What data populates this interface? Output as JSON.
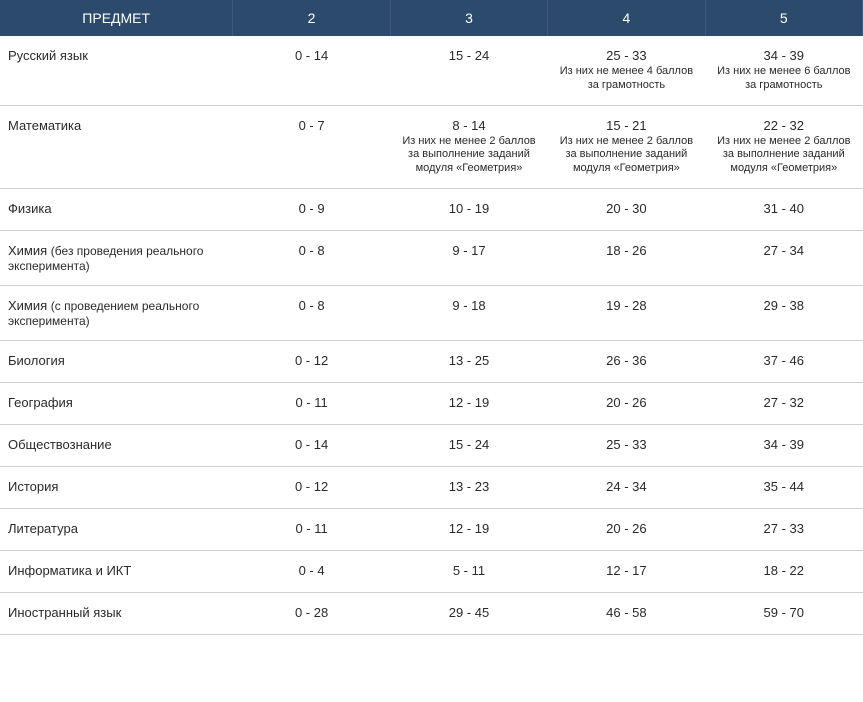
{
  "table": {
    "header_bg": "#2c4a6b",
    "header_fg": "#ffffff",
    "border_color": "#d0d0d0",
    "text_color": "#2a2a2a",
    "columns": [
      "ПРЕДМЕТ",
      "2",
      "3",
      "4",
      "5"
    ],
    "rows": [
      {
        "subject": "Русский язык",
        "subject_paren": "",
        "c2": {
          "main": "0 - 14",
          "note": ""
        },
        "c3": {
          "main": "15 - 24",
          "note": ""
        },
        "c4": {
          "main": "25 - 33",
          "note": "Из них не менее 4 баллов за грамотность"
        },
        "c5": {
          "main": "34 - 39",
          "note": "Из них не менее 6 баллов за грамотность"
        }
      },
      {
        "subject": "Математика",
        "subject_paren": "",
        "c2": {
          "main": "0 - 7",
          "note": ""
        },
        "c3": {
          "main": "8 - 14",
          "note": "Из них не менее 2 баллов за выполнение заданий модуля «Геометрия»"
        },
        "c4": {
          "main": "15 - 21",
          "note": "Из них не менее 2 баллов за выполнение заданий модуля «Геометрия»"
        },
        "c5": {
          "main": "22 - 32",
          "note": "Из них не менее 2 баллов за выполнение заданий модуля «Геометрия»"
        }
      },
      {
        "subject": "Физика",
        "subject_paren": "",
        "c2": {
          "main": "0 - 9",
          "note": ""
        },
        "c3": {
          "main": "10 - 19",
          "note": ""
        },
        "c4": {
          "main": "20 - 30",
          "note": ""
        },
        "c5": {
          "main": "31 - 40",
          "note": ""
        }
      },
      {
        "subject": "Химия",
        "subject_paren": "(без проведения реального эксперимента)",
        "c2": {
          "main": "0 - 8",
          "note": ""
        },
        "c3": {
          "main": "9 - 17",
          "note": ""
        },
        "c4": {
          "main": "18 - 26",
          "note": ""
        },
        "c5": {
          "main": "27 - 34",
          "note": ""
        }
      },
      {
        "subject": "Химия",
        "subject_paren": "(с проведением реального эксперимента)",
        "c2": {
          "main": "0 - 8",
          "note": ""
        },
        "c3": {
          "main": "9 - 18",
          "note": ""
        },
        "c4": {
          "main": "19 - 28",
          "note": ""
        },
        "c5": {
          "main": "29 - 38",
          "note": ""
        }
      },
      {
        "subject": "Биология",
        "subject_paren": "",
        "c2": {
          "main": "0 - 12",
          "note": ""
        },
        "c3": {
          "main": "13 - 25",
          "note": ""
        },
        "c4": {
          "main": "26 - 36",
          "note": ""
        },
        "c5": {
          "main": "37 - 46",
          "note": ""
        }
      },
      {
        "subject": "География",
        "subject_paren": "",
        "c2": {
          "main": "0 - 11",
          "note": ""
        },
        "c3": {
          "main": "12 - 19",
          "note": ""
        },
        "c4": {
          "main": "20 - 26",
          "note": ""
        },
        "c5": {
          "main": "27 - 32",
          "note": ""
        }
      },
      {
        "subject": "Обществознание",
        "subject_paren": "",
        "c2": {
          "main": "0 - 14",
          "note": ""
        },
        "c3": {
          "main": "15 - 24",
          "note": ""
        },
        "c4": {
          "main": "25 - 33",
          "note": ""
        },
        "c5": {
          "main": "34 - 39",
          "note": ""
        }
      },
      {
        "subject": "История",
        "subject_paren": "",
        "c2": {
          "main": "0 - 12",
          "note": ""
        },
        "c3": {
          "main": "13 - 23",
          "note": ""
        },
        "c4": {
          "main": "24 - 34",
          "note": ""
        },
        "c5": {
          "main": "35 - 44",
          "note": ""
        }
      },
      {
        "subject": "Литература",
        "subject_paren": "",
        "c2": {
          "main": "0 - 11",
          "note": ""
        },
        "c3": {
          "main": "12 - 19",
          "note": ""
        },
        "c4": {
          "main": "20 - 26",
          "note": ""
        },
        "c5": {
          "main": "27 - 33",
          "note": ""
        }
      },
      {
        "subject": "Информатика и ИКТ",
        "subject_paren": "",
        "c2": {
          "main": "0 - 4",
          "note": ""
        },
        "c3": {
          "main": "5 - 11",
          "note": ""
        },
        "c4": {
          "main": "12 - 17",
          "note": ""
        },
        "c5": {
          "main": "18 - 22",
          "note": ""
        }
      },
      {
        "subject": "Иностранный язык",
        "subject_paren": "",
        "c2": {
          "main": "0 - 28",
          "note": ""
        },
        "c3": {
          "main": "29 - 45",
          "note": ""
        },
        "c4": {
          "main": "46 - 58",
          "note": ""
        },
        "c5": {
          "main": "59 - 70",
          "note": ""
        }
      }
    ]
  }
}
